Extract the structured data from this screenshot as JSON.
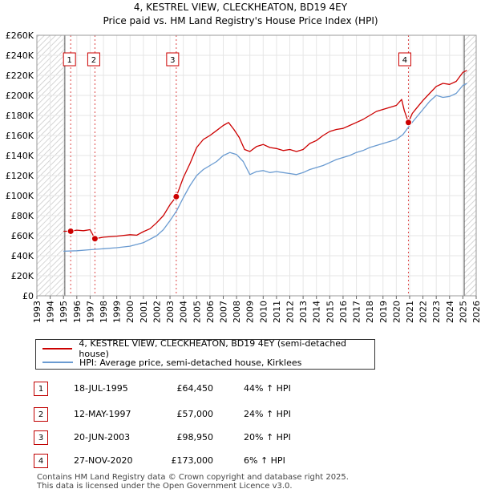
{
  "chart_data": {
    "type": "line",
    "title": "4, KESTREL VIEW, CLECKHEATON, BD19 4EY",
    "subtitle": "Price paid vs. HM Land Registry's House Price Index (HPI)",
    "x_range": [
      1993,
      2026
    ],
    "ylim": [
      0,
      260000
    ],
    "y_ticks": [
      {
        "value": 0,
        "label": "£0"
      },
      {
        "value": 20000,
        "label": "£20K"
      },
      {
        "value": 40000,
        "label": "£40K"
      },
      {
        "value": 60000,
        "label": "£60K"
      },
      {
        "value": 80000,
        "label": "£80K"
      },
      {
        "value": 100000,
        "label": "£100K"
      },
      {
        "value": 120000,
        "label": "£120K"
      },
      {
        "value": 140000,
        "label": "£140K"
      },
      {
        "value": 160000,
        "label": "£160K"
      },
      {
        "value": 180000,
        "label": "£180K"
      },
      {
        "value": 200000,
        "label": "£200K"
      },
      {
        "value": 220000,
        "label": "£220K"
      },
      {
        "value": 240000,
        "label": "£240K"
      },
      {
        "value": 260000,
        "label": "£260K"
      }
    ],
    "x_ticks": [
      "1993",
      "1994",
      "1995",
      "1996",
      "1997",
      "1998",
      "1999",
      "2000",
      "2001",
      "2002",
      "2003",
      "2004",
      "2005",
      "2006",
      "2007",
      "2008",
      "2009",
      "2010",
      "2011",
      "2012",
      "2013",
      "2014",
      "2015",
      "2016",
      "2017",
      "2018",
      "2019",
      "2020",
      "2021",
      "2022",
      "2023",
      "2024",
      "2025",
      "2026"
    ],
    "hatched_regions": [
      [
        1993,
        1995.1
      ],
      [
        2025.1,
        2026
      ]
    ],
    "grid": true,
    "series": [
      {
        "name": "4, KESTREL VIEW, CLECKHEATON, BD19 4EY (semi-detached house)",
        "color": "#cc0000",
        "points": [
          [
            1995.0,
            64400
          ],
          [
            1995.54,
            64450
          ],
          [
            1996.0,
            65500
          ],
          [
            1996.5,
            65000
          ],
          [
            1997.0,
            66000
          ],
          [
            1997.36,
            57000
          ],
          [
            1998.0,
            58500
          ],
          [
            1999.0,
            59500
          ],
          [
            2000.0,
            61000
          ],
          [
            2000.5,
            60500
          ],
          [
            2001.0,
            64000
          ],
          [
            2001.5,
            67000
          ],
          [
            2002.0,
            73000
          ],
          [
            2002.5,
            80000
          ],
          [
            2003.0,
            91000
          ],
          [
            2003.47,
            98950
          ],
          [
            2004.0,
            118000
          ],
          [
            2004.5,
            132000
          ],
          [
            2005.0,
            148000
          ],
          [
            2005.5,
            156000
          ],
          [
            2006.0,
            160000
          ],
          [
            2006.5,
            165000
          ],
          [
            2007.0,
            170000
          ],
          [
            2007.4,
            173000
          ],
          [
            2007.8,
            166000
          ],
          [
            2008.2,
            158000
          ],
          [
            2008.6,
            146000
          ],
          [
            2009.0,
            144000
          ],
          [
            2009.5,
            149000
          ],
          [
            2010.0,
            151000
          ],
          [
            2010.5,
            148000
          ],
          [
            2011.0,
            147000
          ],
          [
            2011.5,
            145000
          ],
          [
            2012.0,
            146000
          ],
          [
            2012.5,
            144000
          ],
          [
            2013.0,
            146000
          ],
          [
            2013.5,
            152000
          ],
          [
            2014.0,
            155000
          ],
          [
            2014.5,
            160000
          ],
          [
            2015.0,
            164000
          ],
          [
            2015.5,
            166000
          ],
          [
            2016.0,
            167000
          ],
          [
            2016.5,
            170000
          ],
          [
            2017.0,
            173000
          ],
          [
            2017.5,
            176000
          ],
          [
            2018.0,
            180000
          ],
          [
            2018.5,
            184000
          ],
          [
            2019.0,
            186000
          ],
          [
            2019.5,
            188000
          ],
          [
            2020.0,
            190000
          ],
          [
            2020.4,
            196000
          ],
          [
            2020.6,
            185000
          ],
          [
            2020.91,
            173000
          ],
          [
            2021.2,
            182000
          ],
          [
            2021.5,
            187000
          ],
          [
            2022.0,
            195000
          ],
          [
            2022.5,
            202000
          ],
          [
            2023.0,
            209000
          ],
          [
            2023.5,
            212000
          ],
          [
            2024.0,
            211000
          ],
          [
            2024.5,
            214000
          ],
          [
            2025.0,
            223000
          ],
          [
            2025.3,
            225000
          ]
        ]
      },
      {
        "name": "HPI: Average price, semi-detached house, Kirklees",
        "color": "#6a9bd1",
        "points": [
          [
            1995.0,
            44500
          ],
          [
            1996.0,
            45000
          ],
          [
            1997.0,
            46000
          ],
          [
            1998.0,
            47000
          ],
          [
            1999.0,
            48000
          ],
          [
            2000.0,
            49500
          ],
          [
            2001.0,
            53000
          ],
          [
            2002.0,
            60000
          ],
          [
            2002.5,
            66000
          ],
          [
            2003.0,
            75000
          ],
          [
            2003.5,
            85000
          ],
          [
            2004.0,
            98000
          ],
          [
            2004.5,
            110000
          ],
          [
            2005.0,
            120000
          ],
          [
            2005.5,
            126000
          ],
          [
            2006.0,
            130000
          ],
          [
            2006.5,
            134000
          ],
          [
            2007.0,
            140000
          ],
          [
            2007.5,
            143000
          ],
          [
            2008.0,
            141000
          ],
          [
            2008.5,
            134000
          ],
          [
            2009.0,
            121000
          ],
          [
            2009.5,
            124000
          ],
          [
            2010.0,
            125000
          ],
          [
            2010.5,
            123000
          ],
          [
            2011.0,
            124000
          ],
          [
            2011.5,
            123000
          ],
          [
            2012.0,
            122000
          ],
          [
            2012.5,
            121000
          ],
          [
            2013.0,
            123000
          ],
          [
            2013.5,
            126000
          ],
          [
            2014.0,
            128000
          ],
          [
            2014.5,
            130000
          ],
          [
            2015.0,
            133000
          ],
          [
            2015.5,
            136000
          ],
          [
            2016.0,
            138000
          ],
          [
            2016.5,
            140000
          ],
          [
            2017.0,
            143000
          ],
          [
            2017.5,
            145000
          ],
          [
            2018.0,
            148000
          ],
          [
            2018.5,
            150000
          ],
          [
            2019.0,
            152000
          ],
          [
            2019.5,
            154000
          ],
          [
            2020.0,
            156000
          ],
          [
            2020.5,
            161000
          ],
          [
            2021.0,
            170000
          ],
          [
            2021.5,
            178000
          ],
          [
            2022.0,
            186000
          ],
          [
            2022.5,
            194000
          ],
          [
            2023.0,
            200000
          ],
          [
            2023.5,
            198000
          ],
          [
            2024.0,
            199000
          ],
          [
            2024.5,
            202000
          ],
          [
            2025.0,
            210000
          ],
          [
            2025.3,
            212000
          ]
        ]
      }
    ],
    "sales": [
      {
        "id": "1",
        "x": 1995.54,
        "y": 64450
      },
      {
        "id": "2",
        "x": 1997.36,
        "y": 57000
      },
      {
        "id": "3",
        "x": 2003.47,
        "y": 98950
      },
      {
        "id": "4",
        "x": 2020.91,
        "y": 173000
      }
    ],
    "marker_label_value": 236000
  },
  "legend": {
    "property": "4, KESTREL VIEW, CLECKHEATON, BD19 4EY (semi-detached house)",
    "hpi": "HPI: Average price, semi-detached house, Kirklees",
    "property_color": "#cc0000",
    "hpi_color": "#6a9bd1"
  },
  "transactions": [
    {
      "num": "1",
      "date": "18-JUL-1995",
      "price": "£64,450",
      "hpi": "44% ↑ HPI"
    },
    {
      "num": "2",
      "date": "12-MAY-1997",
      "price": "£57,000",
      "hpi": "24% ↑ HPI"
    },
    {
      "num": "3",
      "date": "20-JUN-2003",
      "price": "£98,950",
      "hpi": "20% ↑ HPI"
    },
    {
      "num": "4",
      "date": "27-NOV-2020",
      "price": "£173,000",
      "hpi": "6% ↑ HPI"
    }
  ],
  "footer": {
    "line1": "Contains HM Land Registry data © Crown copyright and database right 2025.",
    "line2": "This data is licensed under the Open Government Licence v3.0."
  }
}
